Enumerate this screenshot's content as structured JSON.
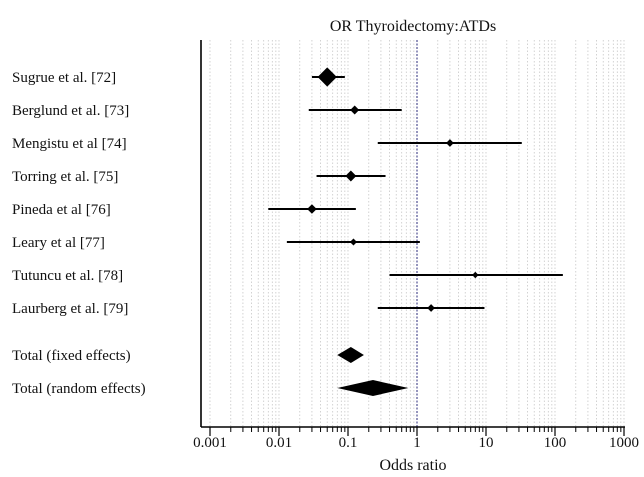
{
  "chart_data": {
    "type": "forest",
    "title": "OR Thyroidectomy:ATDs",
    "xlabel": "Odds ratio",
    "xscale": "log",
    "xlim": [
      0.001,
      1000
    ],
    "reference_line": 1,
    "grid": true,
    "xticks": [
      {
        "value": 0.001,
        "label": "0.001"
      },
      {
        "value": 0.01,
        "label": "0.01"
      },
      {
        "value": 0.1,
        "label": "0.1"
      },
      {
        "value": 1,
        "label": "1"
      },
      {
        "value": 10,
        "label": "10"
      },
      {
        "value": 100,
        "label": "100"
      },
      {
        "value": 1000,
        "label": "1000"
      }
    ],
    "studies": [
      {
        "label": "Sugrue et al. [72]",
        "or": 0.05,
        "ci_low": 0.03,
        "ci_high": 0.09,
        "weight": 3.0
      },
      {
        "label": "Berglund et al. [73]",
        "or": 0.125,
        "ci_low": 0.027,
        "ci_high": 0.6,
        "weight": 1.4
      },
      {
        "label": "Mengistu et al [74]",
        "or": 3.0,
        "ci_low": 0.27,
        "ci_high": 33,
        "weight": 1.2
      },
      {
        "label": "Torring et al. [75]",
        "or": 0.11,
        "ci_low": 0.035,
        "ci_high": 0.35,
        "weight": 1.7
      },
      {
        "label": "Pineda et al [76]",
        "or": 0.03,
        "ci_low": 0.007,
        "ci_high": 0.13,
        "weight": 1.5
      },
      {
        "label": "Leary et al [77]",
        "or": 0.12,
        "ci_low": 0.013,
        "ci_high": 1.1,
        "weight": 1.1
      },
      {
        "label": "Tutuncu et al. [78]",
        "or": 7.0,
        "ci_low": 0.4,
        "ci_high": 130,
        "weight": 1.0
      },
      {
        "label": "Laurberg et al. [79]",
        "or": 1.6,
        "ci_low": 0.27,
        "ci_high": 9.5,
        "weight": 1.2
      }
    ],
    "totals": [
      {
        "label": "Total (fixed effects)",
        "or": 0.11,
        "ci_low": 0.07,
        "ci_high": 0.17
      },
      {
        "label": "Total (random effects)",
        "or": 0.23,
        "ci_low": 0.07,
        "ci_high": 0.75
      }
    ]
  }
}
